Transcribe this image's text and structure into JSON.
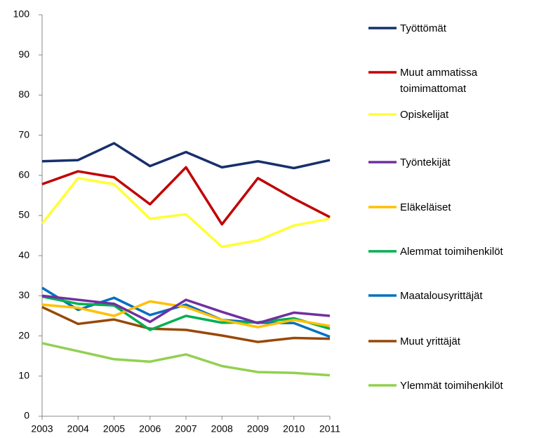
{
  "chart_data": {
    "type": "line",
    "categories": [
      "2003",
      "2004",
      "2005",
      "2006",
      "2007",
      "2008",
      "2009",
      "2010",
      "2011"
    ],
    "series": [
      {
        "name": "Työttömät",
        "color": "#17306b",
        "values": [
          63.5,
          63.8,
          68,
          62.3,
          65.8,
          62,
          63.5,
          61.8,
          63.8
        ]
      },
      {
        "name": "Muut ammatissa toimimattomat",
        "color": "#c00000",
        "values": [
          57.8,
          61,
          59.5,
          52.8,
          62,
          47.8,
          59.3,
          54.2,
          49.6
        ]
      },
      {
        "name": "Opiskelijat",
        "color": "#ffff33",
        "values": [
          48,
          59.3,
          57.8,
          49.2,
          50.3,
          42.2,
          43.8,
          47.5,
          49.2
        ]
      },
      {
        "name": "Työntekijät",
        "color": "#7030a0",
        "values": [
          30,
          29,
          28,
          23.5,
          29,
          26,
          23.2,
          25.8,
          25
        ]
      },
      {
        "name": "Eläkeläiset",
        "color": "#ffc000",
        "values": [
          27.8,
          27,
          25,
          28.6,
          27.2,
          24,
          22.2,
          24,
          22.5
        ]
      },
      {
        "name": "Alemmat toimihenkilöt",
        "color": "#00b050",
        "values": [
          29.8,
          28,
          27.6,
          21.5,
          25,
          23.3,
          23.4,
          24.4,
          21.8
        ]
      },
      {
        "name": "Maatalousyrittäjät",
        "color": "#0070c0",
        "values": [
          32,
          26.5,
          29.5,
          25.2,
          27.8,
          24,
          23.3,
          23.2,
          19.8
        ]
      },
      {
        "name": "Muut yrittäjät",
        "color": "#984807",
        "values": [
          27.2,
          23,
          24.1,
          21.8,
          21.5,
          20.1,
          18.5,
          19.5,
          19.3
        ]
      },
      {
        "name": "Ylemmät toimihenkilöt",
        "color": "#92d050",
        "values": [
          18.2,
          16.2,
          14.2,
          13.6,
          15.4,
          12.5,
          11,
          10.8,
          10.2
        ]
      }
    ],
    "ylim": [
      0,
      100
    ],
    "yticks": [
      0,
      10,
      20,
      30,
      40,
      50,
      60,
      70,
      80,
      90,
      100
    ],
    "legend": "right"
  }
}
